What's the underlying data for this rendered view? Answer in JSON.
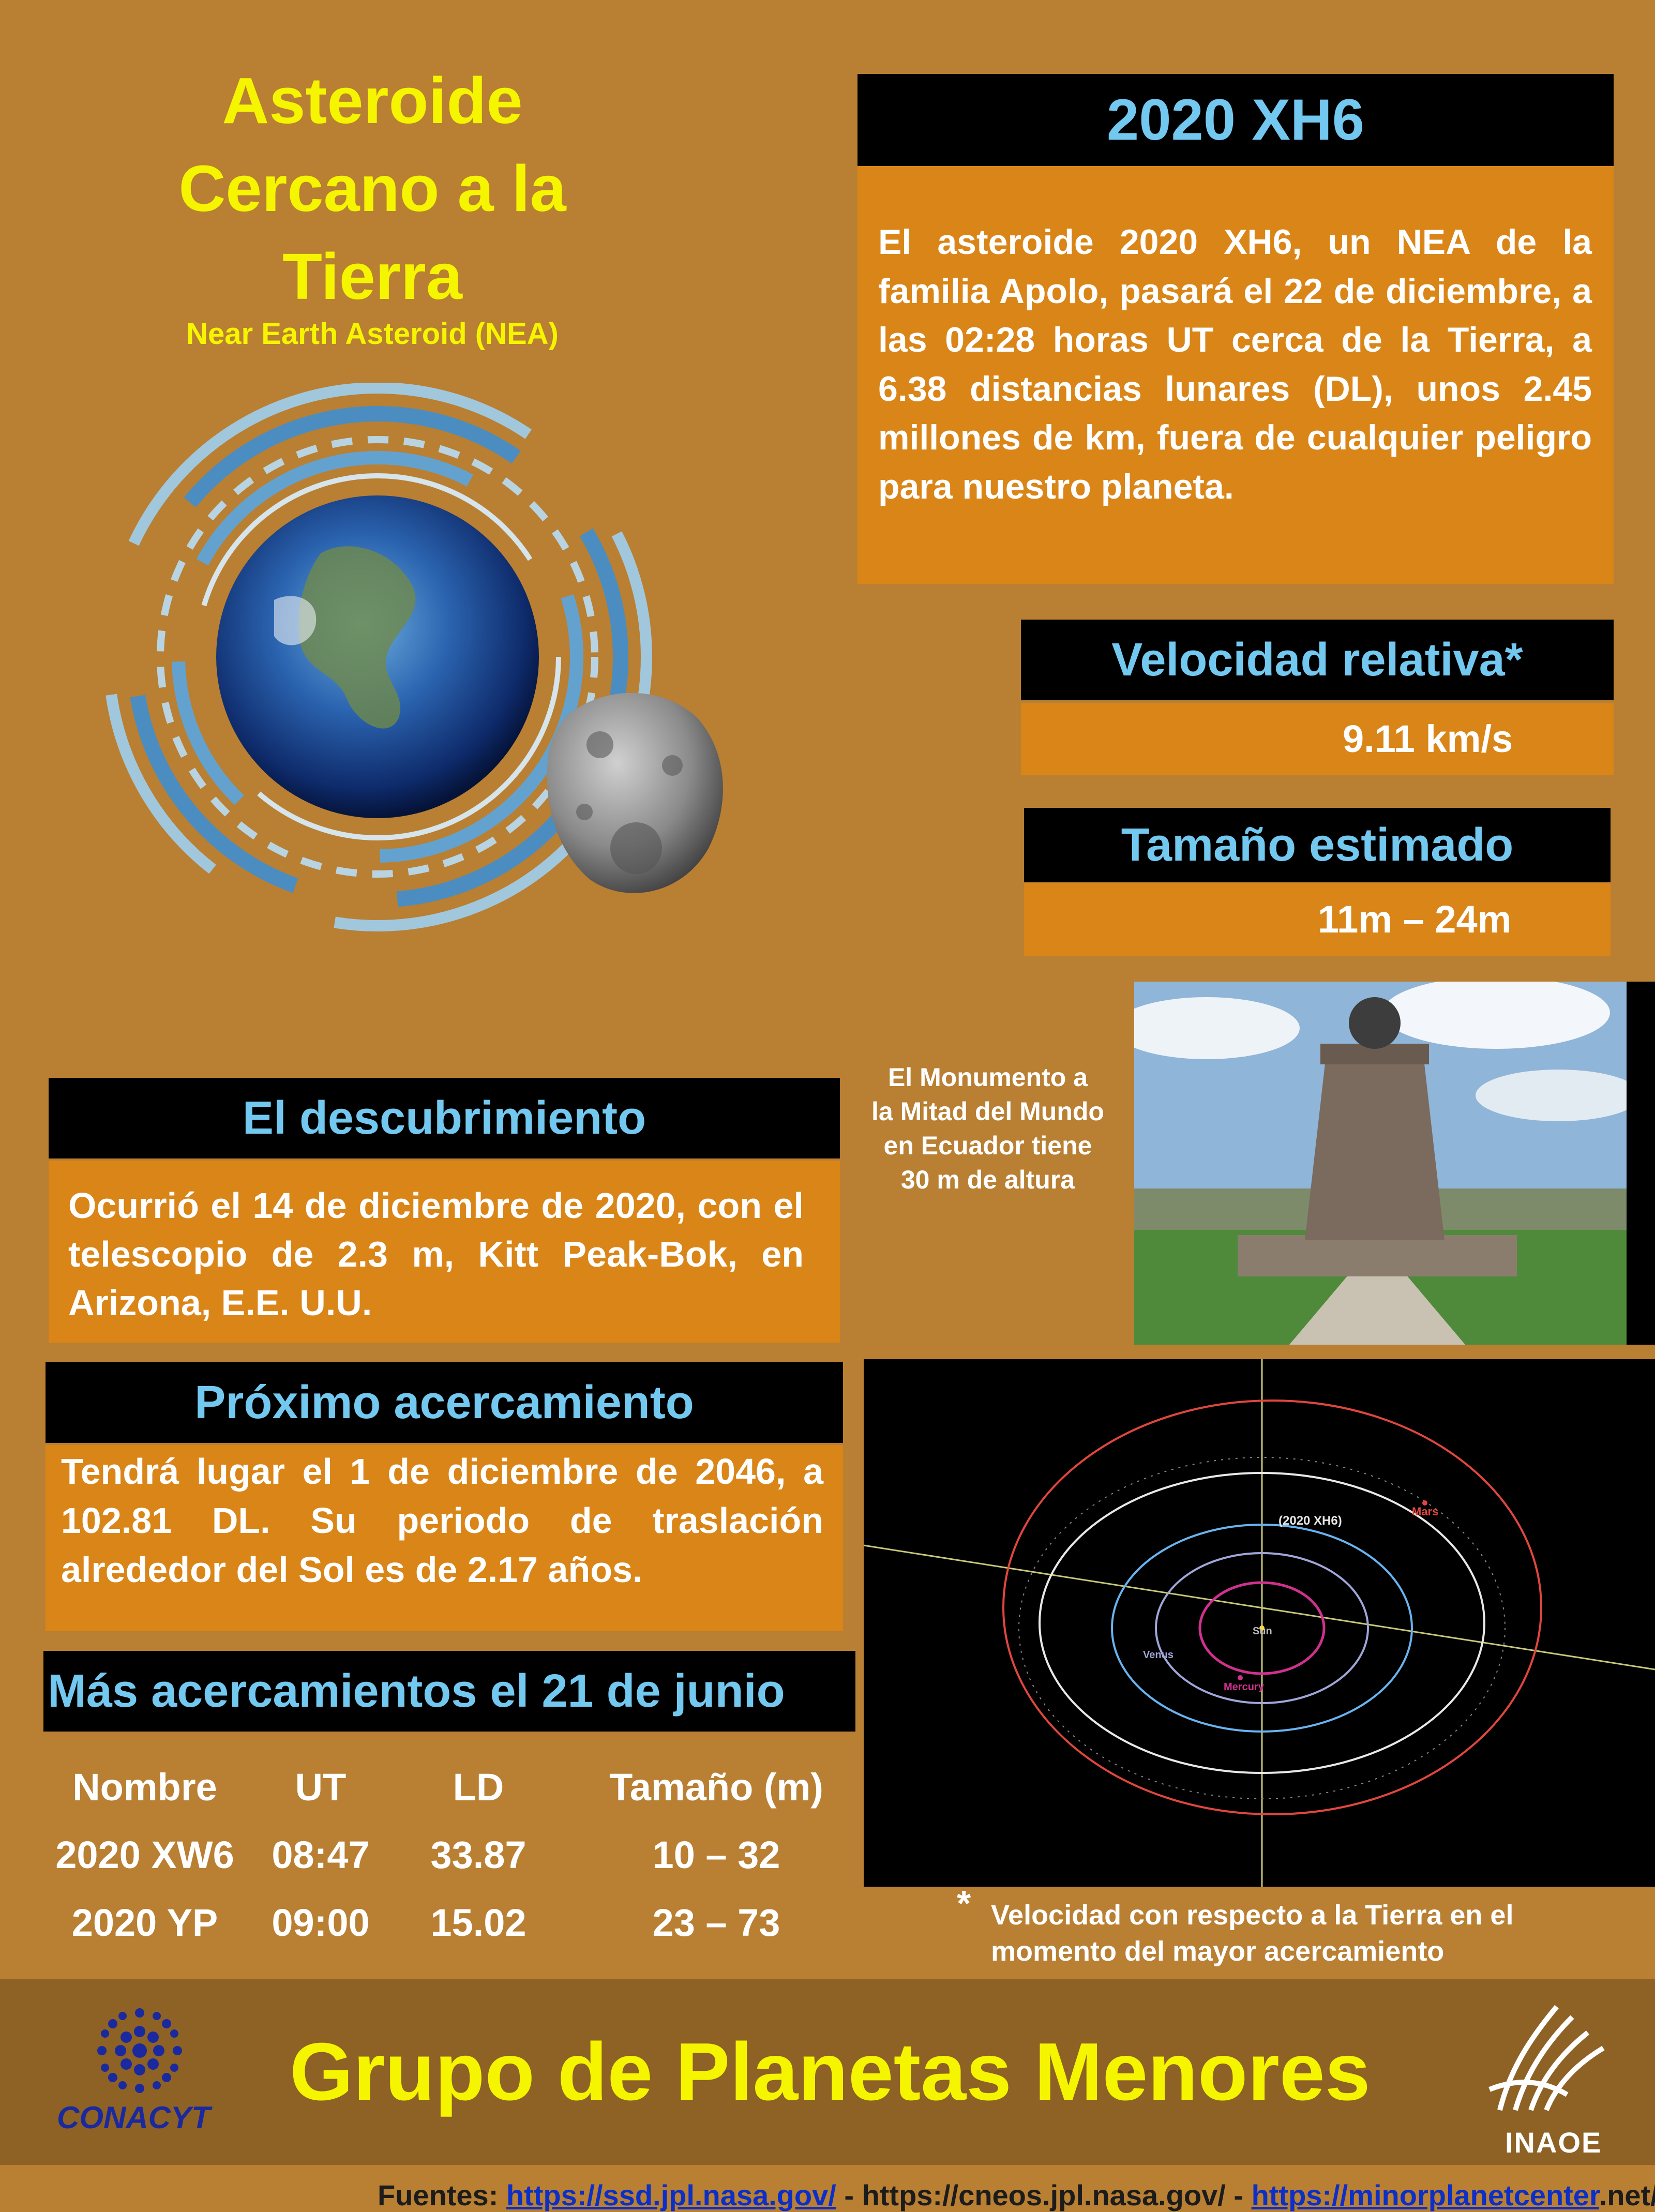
{
  "title": {
    "line1": "Asteroide",
    "line2": "Cercano a la",
    "line3": "Tierra",
    "subtitle": "Near Earth Asteroid (NEA)"
  },
  "asteroid_panel": {
    "name": "2020 XH6",
    "description": "El asteroide 2020 XH6, un NEA de la familia Apolo, pasará el 22 de diciembre, a las 02:28 horas UT cerca de la Tierra, a 6.38 distancias lunares (DL), unos 2.45 millones de km, fuera de cualquier peligro para nuestro planeta."
  },
  "velocity": {
    "label": "Velocidad relativa*",
    "value": "9.11 km/s"
  },
  "size": {
    "label": "Tamaño estimado",
    "value": "11m – 24m"
  },
  "monument_caption": {
    "line1": "El Monumento a",
    "line2": "la Mitad del Mundo",
    "line3": "en Ecuador tiene",
    "line4": "30 m de altura"
  },
  "discovery": {
    "label": "El descubrimiento",
    "text": "Ocurrió el 14 de diciembre de 2020, con el telescopio de 2.3 m, Kitt Peak-Bok, en Arizona, E.E. U.U."
  },
  "next_approach": {
    "label": "Próximo acercamiento",
    "text": "Tendrá lugar el 1 de diciembre de 2046, a 102.81 DL. Su periodo de traslación alrededor del Sol es de 2.17 años."
  },
  "more_approaches": {
    "label": "Más acercamientos el 21 de junio",
    "headers": [
      "Nombre",
      "UT",
      "LD",
      "Tamaño (m)"
    ],
    "rows": [
      [
        "2020 XW6",
        "08:47",
        "33.87",
        "10 – 32"
      ],
      [
        "2020 YP",
        "09:00",
        "15.02",
        "23 – 73"
      ]
    ]
  },
  "orbit_labels": {
    "asteroid": "(2020 XH6)",
    "mars": "Mars",
    "sun": "Sun",
    "venus": "Venus",
    "mercury": "Mercury"
  },
  "footnote": {
    "star": "*",
    "line1": "Velocidad con respecto a la Tierra en el",
    "line2": "momento del mayor acercamiento"
  },
  "footer": {
    "group": "Grupo de Planetas Menores",
    "conacyt": "CONACYT",
    "inaoe": "INAOE"
  },
  "sources": {
    "prefix": "Fuentes:",
    "link1": "https://ssd.jpl.nasa.gov/",
    "sep1": " - https://cneos.jpl.nasa.gov/ -  ",
    "link2": "https://minorplanetcenter",
    "suffix": ".net/"
  },
  "colors": {
    "background": "#b97f32",
    "panel_orange": "#da8518",
    "heading_cyan": "#73c8f0",
    "title_yellow": "#f5f500",
    "footer": "#8e6125"
  }
}
